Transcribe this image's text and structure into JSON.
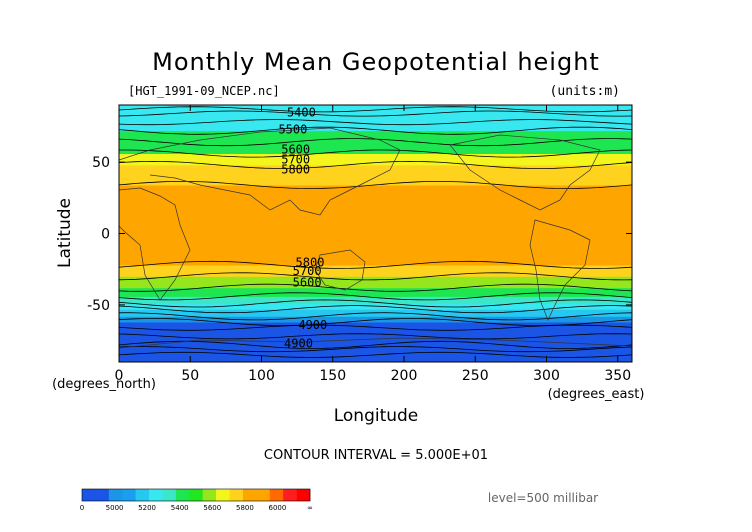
{
  "chart_data": {
    "type": "heatmap",
    "title": "Monthly Mean Geopotential height",
    "subtitle_left": "[HGT_1991-09_NCEP.nc]",
    "subtitle_right": "(units:m)",
    "xlabel": "Longitude",
    "ylabel": "Latitude",
    "x_unit_label": "(degrees_east)",
    "y_unit_label": "(degrees_north)",
    "xlim": [
      0,
      360
    ],
    "ylim": [
      -90,
      90
    ],
    "x_ticks": [
      0,
      50,
      100,
      150,
      200,
      250,
      300,
      350
    ],
    "y_ticks": [
      -50,
      0,
      50
    ],
    "contour_interval_text": "CONTOUR INTERVAL = 5.000E+01",
    "level_text": "level=500 millibar",
    "contour_labels": [
      {
        "text": "5400",
        "lon": 128,
        "lat": 82
      },
      {
        "text": "5500",
        "lon": 122,
        "lat": 70
      },
      {
        "text": "5600",
        "lon": 124,
        "lat": 56
      },
      {
        "text": "5700",
        "lon": 124,
        "lat": 49
      },
      {
        "text": "5800",
        "lon": 124,
        "lat": 42
      },
      {
        "text": "5800",
        "lon": 134,
        "lat": -23
      },
      {
        "text": "5700",
        "lon": 132,
        "lat": -29
      },
      {
        "text": "5600",
        "lon": 132,
        "lat": -37
      },
      {
        "text": "4900",
        "lon": 136,
        "lat": -67
      },
      {
        "text": "4900",
        "lon": 126,
        "lat": -80
      }
    ],
    "colorbar": {
      "ticks": [
        "0",
        "5000",
        "5200",
        "5400",
        "5600",
        "5800",
        "6000",
        "∞"
      ],
      "colors": [
        "#1a55e6",
        "#1a55e6",
        "#1a96e6",
        "#1a9ef0",
        "#26c8f0",
        "#38e8f0",
        "#3ce6c8",
        "#1ee650",
        "#22e61e",
        "#96e61e",
        "#f5f51e",
        "#ffd21e",
        "#ffa500",
        "#ffa500",
        "#ff6a00",
        "#ff1e1e",
        "#ff0000"
      ]
    },
    "band_edges_lat": [
      -90,
      -78,
      -62,
      -58,
      -53,
      -49,
      -44,
      -38,
      -30,
      -22,
      34,
      48,
      56,
      64,
      72,
      90
    ],
    "band_colors": [
      "#1a55e6",
      "#1a55e6",
      "#1a96e6",
      "#26c8f0",
      "#38e8f0",
      "#3ce6c8",
      "#1ee650",
      "#96e61e",
      "#ffd21e",
      "#ffa500",
      "#ffd21e",
      "#f5f51e",
      "#1ee650",
      "#1ee650",
      "#38e8f0"
    ]
  }
}
